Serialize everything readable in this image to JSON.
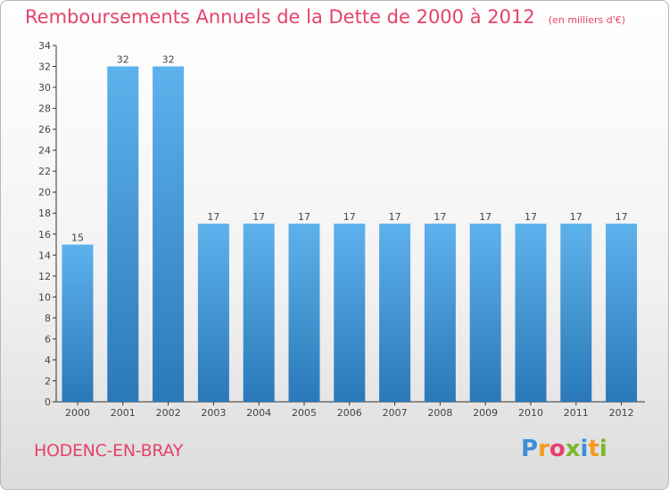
{
  "title": "Remboursements Annuels de la Dette de 2000 à 2012",
  "unit_note": "(en milliers d'€)",
  "commune": "HODENC-EN-BRAY",
  "brand": {
    "text": "Proxiti",
    "letter_colors": [
      "#3d8fd6",
      "#f39a1e",
      "#e83e6c",
      "#7ab929",
      "#3d8fd6",
      "#f39a1e",
      "#7ab929"
    ]
  },
  "colors": {
    "title": "#e5426a",
    "bar_light": "#5eb2ec",
    "bar_dark": "#2a78b8",
    "axis": "#333333",
    "label": "#444444"
  },
  "chart_data": {
    "type": "bar",
    "categories": [
      "2000",
      "2001",
      "2002",
      "2003",
      "2004",
      "2005",
      "2006",
      "2007",
      "2008",
      "2009",
      "2010",
      "2011",
      "2012"
    ],
    "values": [
      15,
      32,
      32,
      17,
      17,
      17,
      17,
      17,
      17,
      17,
      17,
      17,
      17
    ],
    "title": "Remboursements Annuels de la Dette de 2000 à 2012",
    "xlabel": "",
    "ylabel": "",
    "ylim": [
      0,
      34
    ],
    "yticks": [
      0,
      2,
      4,
      6,
      8,
      10,
      12,
      14,
      16,
      18,
      20,
      22,
      24,
      26,
      28,
      30,
      32,
      34
    ],
    "grid": false,
    "legend": "none"
  }
}
